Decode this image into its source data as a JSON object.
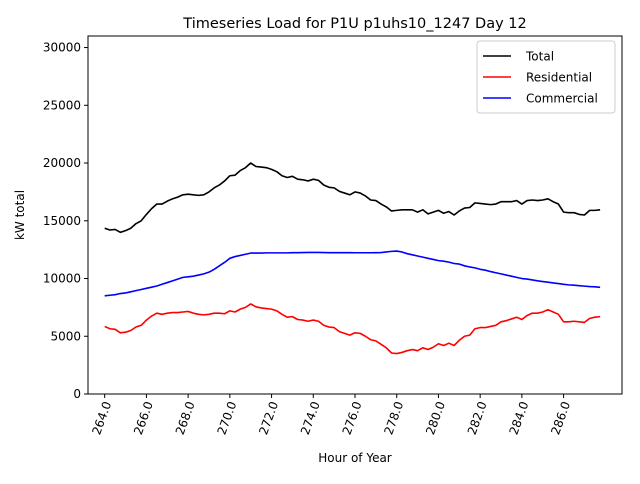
{
  "chart_data": {
    "type": "line",
    "title": "Timeseries Load for P1U p1uhs10_1247  Day 12",
    "xlabel": "Hour of Year",
    "ylabel": "kW total",
    "xlim": [
      263.2,
      288.8
    ],
    "ylim": [
      0,
      31000
    ],
    "xticks": [
      264,
      266,
      268,
      270,
      272,
      274,
      276,
      278,
      280,
      282,
      284,
      286
    ],
    "xtick_labels": [
      "264.0",
      "266.0",
      "268.0",
      "270.0",
      "272.0",
      "274.0",
      "276.0",
      "278.0",
      "280.0",
      "282.0",
      "284.0",
      "286.0"
    ],
    "yticks": [
      0,
      5000,
      10000,
      15000,
      20000,
      25000,
      30000
    ],
    "ytick_labels": [
      "0",
      "5000",
      "10000",
      "15000",
      "20000",
      "25000",
      "30000"
    ],
    "legend_position": "top-right",
    "x_start": 264,
    "x_step": 0.25,
    "series": [
      {
        "name": "Total",
        "color": "#000000",
        "values": [
          14350,
          14200,
          14250,
          14000,
          14150,
          14350,
          14750,
          15000,
          15550,
          16050,
          16450,
          16450,
          16700,
          16900,
          17050,
          17250,
          17300,
          17250,
          17200,
          17250,
          17500,
          17850,
          18100,
          18450,
          18900,
          18950,
          19350,
          19600,
          20000,
          19700,
          19650,
          19600,
          19450,
          19250,
          18900,
          18750,
          18850,
          18600,
          18550,
          18450,
          18600,
          18500,
          18100,
          17900,
          17850,
          17550,
          17400,
          17250,
          17500,
          17400,
          17150,
          16800,
          16750,
          16450,
          16200,
          15850,
          15900,
          15950,
          15950,
          15950,
          15750,
          15950,
          15600,
          15750,
          15900,
          15650,
          15800,
          15500,
          15850,
          16100,
          16150,
          16550,
          16500,
          16450,
          16400,
          16450,
          16650,
          16650,
          16650,
          16750,
          16450,
          16750,
          16800,
          16750,
          16800,
          16900,
          16650,
          16450,
          15750,
          15700,
          15700,
          15550,
          15500,
          15900,
          15900,
          15950
        ]
      },
      {
        "name": "Residential",
        "color": "#ff0000",
        "values": [
          5850,
          5650,
          5600,
          5300,
          5350,
          5500,
          5800,
          5950,
          6400,
          6750,
          7000,
          6900,
          7000,
          7050,
          7050,
          7100,
          7150,
          7000,
          6900,
          6850,
          6900,
          7000,
          7000,
          6950,
          7200,
          7100,
          7350,
          7500,
          7800,
          7550,
          7450,
          7400,
          7350,
          7200,
          6900,
          6650,
          6700,
          6450,
          6400,
          6300,
          6400,
          6300,
          5950,
          5800,
          5750,
          5400,
          5250,
          5100,
          5300,
          5250,
          5000,
          4700,
          4600,
          4300,
          4000,
          3550,
          3500,
          3600,
          3750,
          3850,
          3750,
          4000,
          3850,
          4050,
          4350,
          4200,
          4400,
          4200,
          4650,
          5000,
          5100,
          5650,
          5750,
          5750,
          5850,
          5950,
          6250,
          6350,
          6500,
          6650,
          6450,
          6800,
          7000,
          7000,
          7100,
          7300,
          7100,
          6900,
          6250,
          6250,
          6300,
          6250,
          6200,
          6550,
          6650,
          6700
        ]
      },
      {
        "name": "Commercial",
        "color": "#0000ff",
        "values": [
          8500,
          8550,
          8600,
          8700,
          8750,
          8850,
          8950,
          9050,
          9150,
          9250,
          9350,
          9500,
          9650,
          9800,
          9950,
          10100,
          10150,
          10200,
          10300,
          10400,
          10550,
          10800,
          11100,
          11400,
          11750,
          11900,
          12000,
          12100,
          12200,
          12200,
          12200,
          12220,
          12220,
          12220,
          12220,
          12220,
          12240,
          12240,
          12250,
          12260,
          12260,
          12260,
          12250,
          12240,
          12240,
          12240,
          12240,
          12240,
          12230,
          12230,
          12230,
          12230,
          12240,
          12250,
          12300,
          12350,
          12380,
          12300,
          12150,
          12050,
          11950,
          11850,
          11750,
          11650,
          11550,
          11500,
          11420,
          11300,
          11250,
          11100,
          11000,
          10920,
          10800,
          10720,
          10600,
          10500,
          10400,
          10300,
          10200,
          10100,
          10000,
          9950,
          9880,
          9800,
          9740,
          9680,
          9620,
          9560,
          9500,
          9450,
          9420,
          9380,
          9340,
          9300,
          9280,
          9240
        ]
      }
    ]
  }
}
